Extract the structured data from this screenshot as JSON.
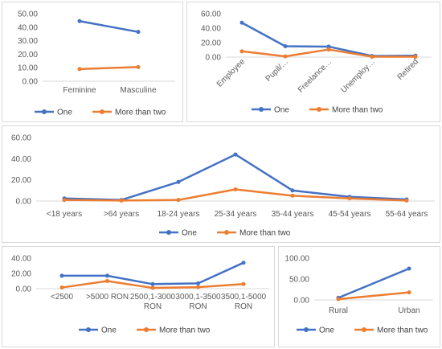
{
  "colors": {
    "one": "#4472C4",
    "two": "#ED7D31",
    "grid": "#d9d9d9",
    "text": "#595959"
  },
  "chart_data": [
    {
      "id": "gender",
      "type": "line",
      "categories": [
        "Feminine",
        "Masculine"
      ],
      "series": [
        {
          "name": "One",
          "values": [
            44.5,
            36.5
          ]
        },
        {
          "name": "More than two",
          "values": [
            9.0,
            10.5
          ]
        }
      ],
      "ylim": [
        0,
        50
      ],
      "yticks": [
        "0.00",
        "10.00",
        "20.00",
        "30.00",
        "40.00",
        "50.00"
      ],
      "grid": false,
      "legend": "bottom"
    },
    {
      "id": "occupation",
      "type": "line",
      "categories": [
        "Employee",
        "Pupil/…",
        "Freelance…",
        "Unemploy…",
        "Retired"
      ],
      "series": [
        {
          "name": "One",
          "values": [
            47.5,
            15.0,
            14.5,
            1.5,
            2.0
          ]
        },
        {
          "name": "More than two",
          "values": [
            8.0,
            1.0,
            10.5,
            0.5,
            0.5
          ]
        }
      ],
      "ylim": [
        0,
        60
      ],
      "yticks": [
        "0.00",
        "20.00",
        "40.00",
        "60.00"
      ],
      "grid": false,
      "legend": "bottom"
    },
    {
      "id": "age",
      "type": "line",
      "categories": [
        "<18 years",
        ">64 years",
        "18-24 years",
        "25-34 years",
        "35-44 years",
        "45-54 years",
        "55-64 years"
      ],
      "series": [
        {
          "name": "One",
          "values": [
            2.5,
            1.0,
            18.0,
            44.0,
            10.0,
            4.0,
            1.5
          ]
        },
        {
          "name": "More than two",
          "values": [
            1.0,
            0.5,
            1.0,
            11.0,
            5.0,
            2.5,
            0.5
          ]
        }
      ],
      "ylim": [
        0,
        60
      ],
      "yticks": [
        "0.00",
        "20.00",
        "40.00",
        "60.00"
      ],
      "grid": false,
      "legend": "bottom"
    },
    {
      "id": "income",
      "type": "line",
      "categories": [
        "<2500",
        ">5000 RON",
        "2500,1-3000 RON",
        "3000,1-3500 RON",
        "3500,1-5000 RON"
      ],
      "category_lines": [
        [
          "<2500"
        ],
        [
          ">5000 RON"
        ],
        [
          "2500,1-3000",
          "RON"
        ],
        [
          "3000,1-3500",
          "RON"
        ],
        [
          "3500,1-5000",
          "RON"
        ]
      ],
      "series": [
        {
          "name": "One",
          "values": [
            17.0,
            17.0,
            6.0,
            7.0,
            34.0
          ]
        },
        {
          "name": "More than two",
          "values": [
            1.5,
            10.0,
            1.0,
            2.0,
            6.0
          ]
        }
      ],
      "ylim": [
        0,
        40
      ],
      "yticks": [
        "0.00",
        "20.00",
        "40.00"
      ],
      "grid": false,
      "legend": "bottom"
    },
    {
      "id": "residence",
      "type": "line",
      "categories": [
        "Rural",
        "Urban"
      ],
      "series": [
        {
          "name": "One",
          "values": [
            5.0,
            75.0
          ]
        },
        {
          "name": "More than two",
          "values": [
            2.0,
            18.0
          ]
        }
      ],
      "ylim": [
        0,
        100
      ],
      "yticks": [
        "0.00",
        "50.00",
        "100.00"
      ],
      "grid": false,
      "legend": "bottom"
    }
  ]
}
